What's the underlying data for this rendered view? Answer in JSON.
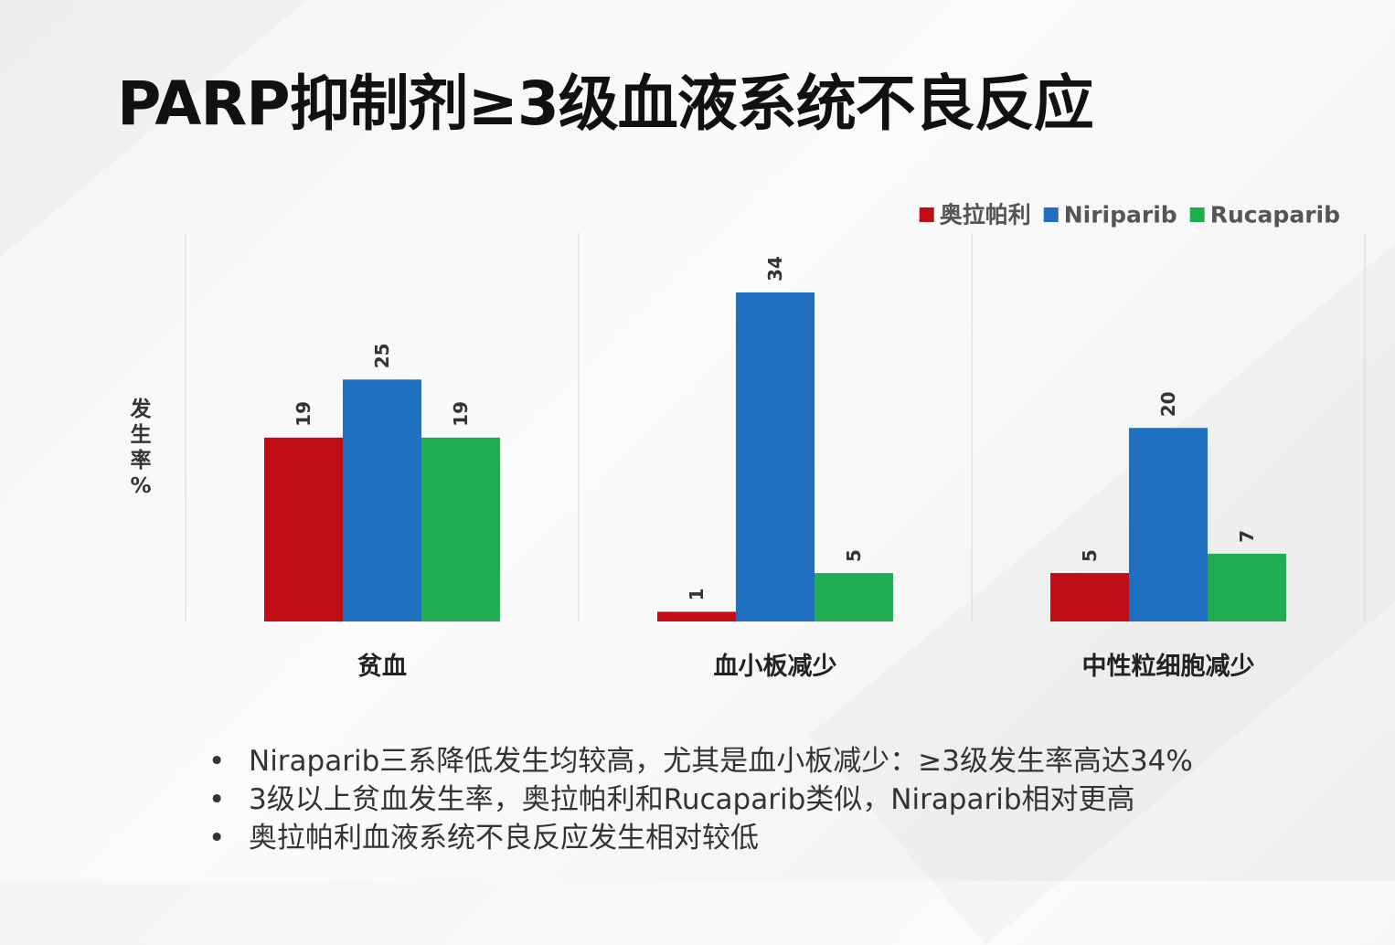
{
  "title": "PARP抑制剂≥3级血液系统不良反应",
  "bullets": [
    "Niraparib三系降低发生均较高，尤其是血小板减少：≥3级发生率高达34%",
    "3级以上贫血发生率，奥拉帕利和Rucaparib类似，Niraparib相对更高",
    "奥拉帕利血液系统不良反应发生相对较低"
  ],
  "bullet_symbol": "•",
  "chart_data": {
    "type": "bar",
    "categories": [
      "贫血",
      "血小板减少",
      "中性粒细胞减少"
    ],
    "series": [
      {
        "name": "奥拉帕利",
        "values": [
          19,
          1,
          5
        ],
        "color": "#c00d16"
      },
      {
        "name": "Niriparib",
        "values": [
          25,
          34,
          20
        ],
        "color": "#1f70c1"
      },
      {
        "name": "Rucaparib",
        "values": [
          19,
          5,
          7
        ],
        "color": "#20ad52"
      }
    ],
    "ylabel": "发生率%",
    "ylim": [
      0,
      34
    ],
    "legend": "top-right",
    "grid": false,
    "data_labels": true
  }
}
